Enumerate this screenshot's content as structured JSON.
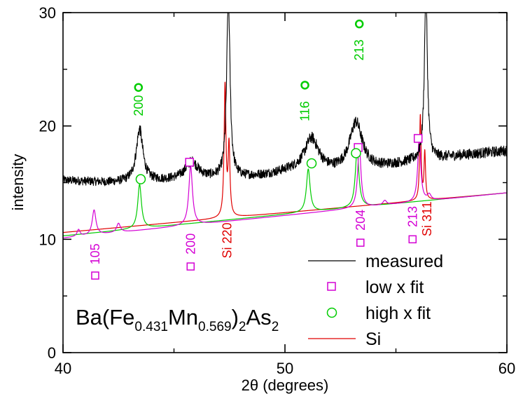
{
  "chart_data": {
    "type": "line",
    "title": "",
    "xlabel": "2θ (degrees)",
    "ylabel": "intensity",
    "xlim": [
      40,
      60
    ],
    "ylim": [
      0,
      30
    ],
    "x_ticks": [
      40,
      50,
      60
    ],
    "y_ticks": [
      0,
      10,
      20,
      30
    ],
    "grid": false,
    "legend_position": "bottom-right",
    "compound": {
      "prefix": "Ba(Fe",
      "sub1": "0.431",
      "mid": "Mn",
      "sub2": "0.569",
      "close": ")",
      "sub3": "2",
      "suffix": "As",
      "sub4": "2"
    },
    "series": [
      {
        "name": "measured",
        "color": "#000000",
        "baseline": [
          [
            40,
            15.2
          ],
          [
            42,
            15.0
          ],
          [
            44,
            15.1
          ],
          [
            46,
            15.3
          ],
          [
            48,
            15.4
          ],
          [
            50,
            15.6
          ],
          [
            52,
            15.8
          ],
          [
            54,
            16.2
          ],
          [
            56,
            16.9
          ],
          [
            58,
            17.4
          ],
          [
            60,
            17.8
          ]
        ],
        "peaks": [
          [
            43.45,
            4.6,
            0.18
          ],
          [
            45.8,
            1.5,
            0.35
          ],
          [
            47.45,
            16.0,
            0.09
          ],
          [
            50.2,
            0.3,
            0.8
          ],
          [
            51.2,
            3.0,
            0.4
          ],
          [
            53.2,
            4.2,
            0.35
          ],
          [
            56.35,
            15.0,
            0.08
          ]
        ],
        "noise": 0.45
      },
      {
        "name": "low x fit",
        "color": "#d400d4",
        "baseline": [
          [
            40,
            10.1
          ],
          [
            60,
            14.1
          ]
        ],
        "peaks": [
          [
            40.7,
            0.6,
            0.08
          ],
          [
            41.4,
            2.2,
            0.1
          ],
          [
            42.5,
            0.8,
            0.1
          ],
          [
            45.75,
            5.2,
            0.1
          ],
          [
            53.35,
            5.5,
            0.09
          ],
          [
            54.5,
            0.4,
            0.1
          ],
          [
            56.05,
            5.7,
            0.08
          ],
          [
            56.5,
            0.5,
            0.1
          ]
        ]
      },
      {
        "name": "high x fit",
        "color": "#00cc00",
        "baseline": [
          [
            40,
            10.3
          ],
          [
            60,
            14.1
          ]
        ],
        "peaks": [
          [
            43.45,
            3.9,
            0.1
          ],
          [
            51.05,
            3.8,
            0.1
          ],
          [
            53.25,
            5.0,
            0.1
          ]
        ]
      },
      {
        "name": "Si",
        "color": "#e00000",
        "baseline": [
          [
            40,
            10.6
          ],
          [
            60,
            14.1
          ]
        ],
        "peaks": [
          [
            47.3,
            11.6,
            0.05
          ],
          [
            47.48,
            6.2,
            0.05
          ],
          [
            56.1,
            7.5,
            0.04
          ],
          [
            56.3,
            4.2,
            0.04
          ]
        ]
      }
    ],
    "markers": [
      {
        "series": "low x fit",
        "shape": "square",
        "x": 45.7,
        "y": 16.8
      },
      {
        "series": "low x fit",
        "shape": "square",
        "x": 53.3,
        "y": 18.1
      },
      {
        "series": "low x fit",
        "shape": "square",
        "x": 56.0,
        "y": 18.9
      },
      {
        "series": "high x fit",
        "shape": "circle",
        "x": 43.5,
        "y": 15.3
      },
      {
        "series": "high x fit",
        "shape": "circle",
        "x": 51.2,
        "y": 16.7
      },
      {
        "series": "high x fit",
        "shape": "circle",
        "x": 53.2,
        "y": 17.6
      }
    ],
    "annotations": [
      {
        "text": "200",
        "x": 43.4,
        "y": 21.8,
        "color": "#00cc00",
        "marker": "circle",
        "marker_y": 23.4,
        "rotate": -90
      },
      {
        "text": "116",
        "x": 50.9,
        "y": 21.3,
        "color": "#00cc00",
        "marker": "circle",
        "marker_y": 23.6,
        "rotate": -90
      },
      {
        "text": "213",
        "x": 53.35,
        "y": 26.7,
        "color": "#00cc00",
        "marker": "circle",
        "marker_y": 29.0,
        "rotate": -90
      },
      {
        "text": "105",
        "x": 41.45,
        "y": 8.7,
        "color": "#d400d4",
        "marker": "square",
        "marker_y": 6.8,
        "rotate": -90
      },
      {
        "text": "200",
        "x": 45.75,
        "y": 9.6,
        "color": "#d400d4",
        "marker": "square",
        "marker_y": 7.6,
        "rotate": -90
      },
      {
        "text": "204",
        "x": 53.4,
        "y": 11.7,
        "color": "#d400d4",
        "marker": "square",
        "marker_y": 9.7,
        "rotate": -90
      },
      {
        "text": "213",
        "x": 55.75,
        "y": 12.0,
        "color": "#d400d4",
        "marker": "square",
        "marker_y": 10.0,
        "rotate": -90
      },
      {
        "text": "Si 220",
        "x": 47.4,
        "y": 9.9,
        "color": "#e00000",
        "rotate": -90
      },
      {
        "text": "Si 311",
        "x": 56.4,
        "y": 11.8,
        "color": "#e00000",
        "rotate": -90
      }
    ]
  }
}
